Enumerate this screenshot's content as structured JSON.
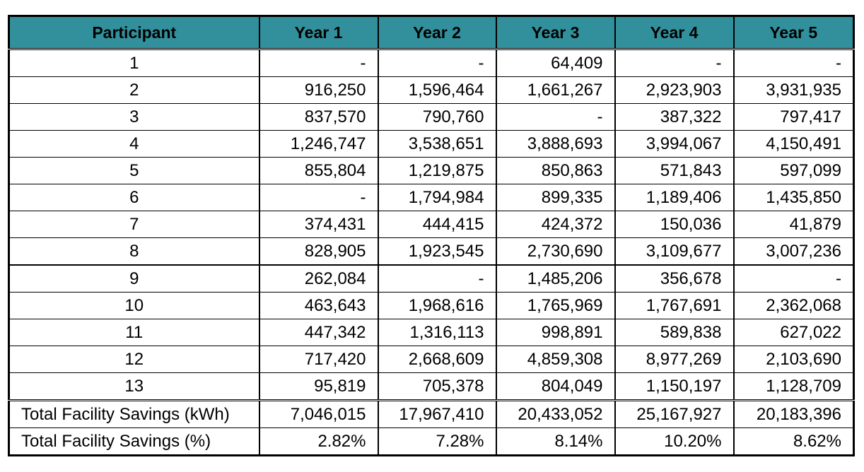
{
  "table": {
    "header_bg": "#32909c",
    "headers": [
      "Participant",
      "Year 1",
      "Year 2",
      "Year 3",
      "Year 4",
      "Year 5"
    ],
    "rows": [
      [
        "1",
        "-",
        "-",
        "64,409",
        "-",
        "-"
      ],
      [
        "2",
        "916,250",
        "1,596,464",
        "1,661,267",
        "2,923,903",
        "3,931,935"
      ],
      [
        "3",
        "837,570",
        "790,760",
        "-",
        "387,322",
        "797,417"
      ],
      [
        "4",
        "1,246,747",
        "3,538,651",
        "3,888,693",
        "3,994,067",
        "4,150,491"
      ],
      [
        "5",
        "855,804",
        "1,219,875",
        "850,863",
        "571,843",
        "597,099"
      ],
      [
        "6",
        "-",
        "1,794,984",
        "899,335",
        "1,189,406",
        "1,435,850"
      ],
      [
        "7",
        "374,431",
        "444,415",
        "424,372",
        "150,036",
        "41,879"
      ],
      [
        "8",
        "828,905",
        "1,923,545",
        "2,730,690",
        "3,109,677",
        "3,007,236"
      ],
      [
        "9",
        "262,084",
        "-",
        "1,485,206",
        "356,678",
        "-"
      ],
      [
        "10",
        "463,643",
        "1,968,616",
        "1,765,969",
        "1,767,691",
        "2,362,068"
      ],
      [
        "11",
        "447,342",
        "1,316,113",
        "998,891",
        "589,838",
        "627,022"
      ],
      [
        "12",
        "717,420",
        "2,668,609",
        "4,859,308",
        "8,977,269",
        "2,103,690"
      ],
      [
        "13",
        "95,819",
        "705,378",
        "804,049",
        "1,150,197",
        "1,128,709"
      ]
    ],
    "totals": [
      [
        "Total Facility Savings (kWh)",
        "7,046,015",
        "17,967,410",
        "20,433,052",
        "25,167,927",
        "20,183,396"
      ],
      [
        "Total Facility Savings (%)",
        "2.82%",
        "7.28%",
        "8.14%",
        "10.20%",
        "8.62%"
      ]
    ]
  }
}
